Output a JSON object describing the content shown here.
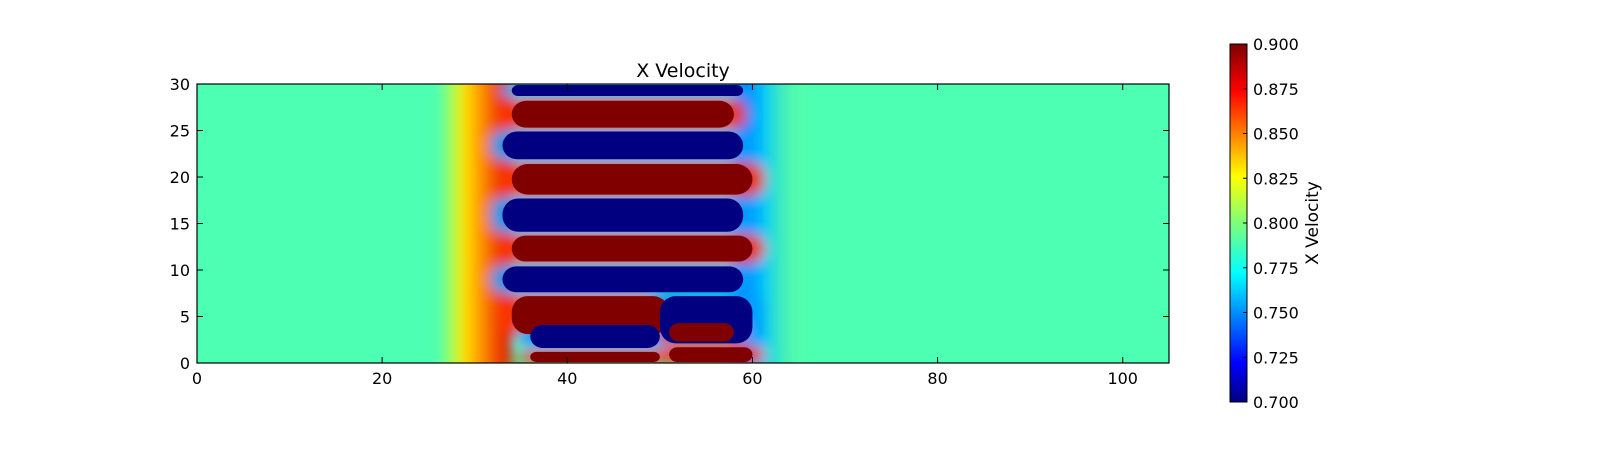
{
  "chart_data": {
    "type": "heatmap",
    "title": "X Velocity",
    "xlabel": "",
    "ylabel": "",
    "xlim": [
      0,
      105
    ],
    "ylim": [
      0,
      30
    ],
    "xticks": [
      "0",
      "20",
      "40",
      "60",
      "80",
      "100"
    ],
    "yticks": [
      "0",
      "5",
      "10",
      "15",
      "20",
      "25",
      "30"
    ],
    "colorbar": {
      "label": "X Velocity",
      "range": [
        0.7,
        0.9
      ],
      "ticks": [
        "0.700",
        "0.725",
        "0.750",
        "0.775",
        "0.800",
        "0.825",
        "0.850",
        "0.875",
        "0.900"
      ],
      "colormap": "jet"
    },
    "background_value": 0.79,
    "colors": {
      "jet_low": "#00007f",
      "jet_high": "#7f0000",
      "background": "#7dff7a"
    },
    "bands": [
      {
        "value": 0.7,
        "x": [
          34,
          59
        ],
        "y": [
          28.6,
          30
        ]
      },
      {
        "value": 0.9,
        "x": [
          34,
          58
        ],
        "y": [
          25.2,
          28.3
        ]
      },
      {
        "value": 0.7,
        "x": [
          33,
          59
        ],
        "y": [
          21.8,
          25
        ]
      },
      {
        "value": 0.9,
        "x": [
          34,
          60
        ],
        "y": [
          18,
          21.5
        ]
      },
      {
        "value": 0.7,
        "x": [
          33,
          59
        ],
        "y": [
          14,
          17.8
        ]
      },
      {
        "value": 0.9,
        "x": [
          34,
          60
        ],
        "y": [
          10.8,
          13.8
        ]
      },
      {
        "value": 0.7,
        "x": [
          33,
          59
        ],
        "y": [
          7.5,
          10.5
        ]
      },
      {
        "value": 0.9,
        "x": [
          34,
          51
        ],
        "y": [
          3,
          7.3
        ]
      },
      {
        "value": 0.7,
        "x": [
          50,
          60
        ],
        "y": [
          2,
          7.3
        ]
      },
      {
        "value": 0.7,
        "x": [
          36,
          50
        ],
        "y": [
          1.5,
          4.2
        ]
      },
      {
        "value": 0.9,
        "x": [
          51,
          58
        ],
        "y": [
          2.2,
          4.4
        ]
      },
      {
        "value": 0.9,
        "x": [
          36,
          50
        ],
        "y": [
          0,
          1.3
        ]
      },
      {
        "value": 0.9,
        "x": [
          51,
          60
        ],
        "y": [
          0,
          1.8
        ]
      }
    ]
  }
}
